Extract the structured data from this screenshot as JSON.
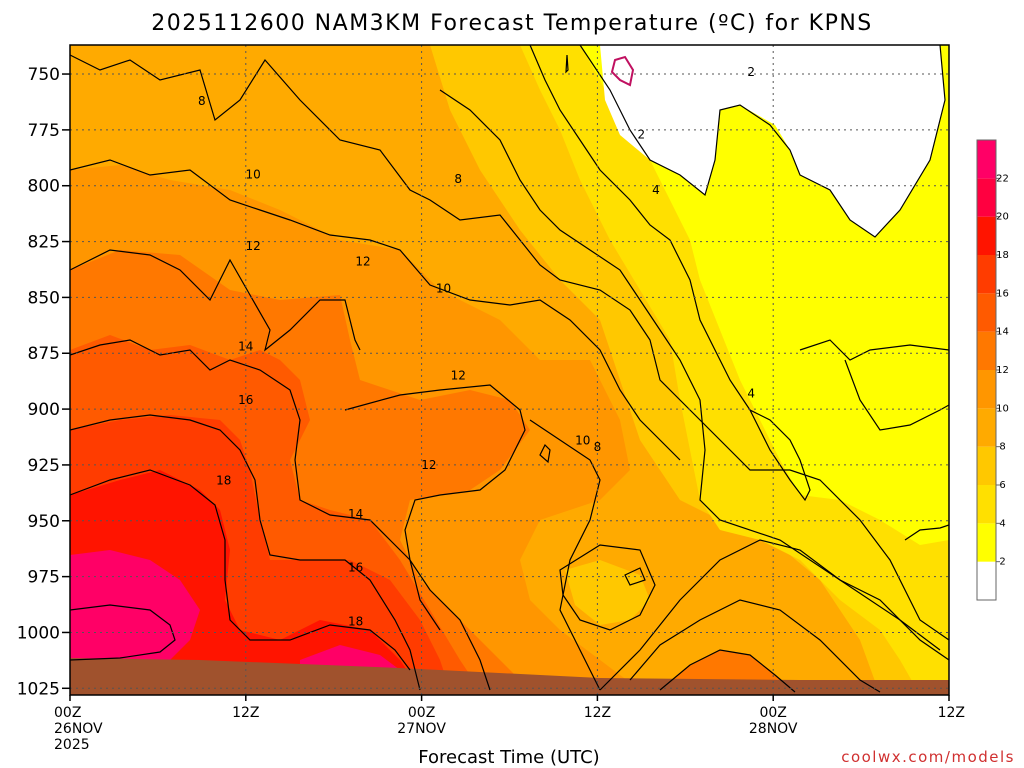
{
  "chart_data": {
    "type": "heatmap",
    "title": "2025112600 NAM3KM Forecast Temperature (ºC) for KPNS",
    "xlabel": "Forecast Time (UTC)",
    "ylabel": "",
    "credit": "coolwx.com/models",
    "x_ticks": [
      {
        "hour": 0,
        "lines": [
          "00Z",
          "26NOV",
          "2025"
        ]
      },
      {
        "hour": 12,
        "lines": [
          "12Z"
        ]
      },
      {
        "hour": 24,
        "lines": [
          "00Z",
          "27NOV"
        ]
      },
      {
        "hour": 36,
        "lines": [
          "12Z"
        ]
      },
      {
        "hour": 48,
        "lines": [
          "00Z",
          "28NOV"
        ]
      },
      {
        "hour": 60,
        "lines": [
          "12Z"
        ]
      }
    ],
    "x_range": [
      0,
      60
    ],
    "y_axis_label_levels": [
      750,
      775,
      800,
      825,
      850,
      875,
      900,
      925,
      950,
      975,
      1000,
      1025
    ],
    "y_range_hPa": [
      737,
      1028
    ],
    "grid": true,
    "colorbar": {
      "ticks": [
        2,
        4,
        6,
        8,
        10,
        12,
        14,
        16,
        18,
        20,
        22
      ],
      "bins": [
        {
          "min": -99,
          "max": 2,
          "color": "#ffffff"
        },
        {
          "min": 2,
          "max": 4,
          "color": "#ffff00"
        },
        {
          "min": 4,
          "max": 6,
          "color": "#ffe000"
        },
        {
          "min": 6,
          "max": 8,
          "color": "#ffc800"
        },
        {
          "min": 8,
          "max": 10,
          "color": "#ffaa00"
        },
        {
          "min": 10,
          "max": 12,
          "color": "#ff9600"
        },
        {
          "min": 12,
          "max": 14,
          "color": "#ff7800"
        },
        {
          "min": 14,
          "max": 16,
          "color": "#ff5a00"
        },
        {
          "min": 16,
          "max": 18,
          "color": "#ff3c00"
        },
        {
          "min": 18,
          "max": 20,
          "color": "#ff1400"
        },
        {
          "min": 20,
          "max": 22,
          "color": "#ff0040"
        },
        {
          "min": 22,
          "max": 99,
          "color": "#ff0066"
        }
      ]
    },
    "contour_labels": [
      {
        "hour": 9.0,
        "hPa": 762,
        "value": "8"
      },
      {
        "hour": 12.5,
        "hPa": 795,
        "value": "10"
      },
      {
        "hour": 12.5,
        "hPa": 827,
        "value": "12"
      },
      {
        "hour": 12.0,
        "hPa": 872,
        "value": "14"
      },
      {
        "hour": 12.0,
        "hPa": 896,
        "value": "16"
      },
      {
        "hour": 10.5,
        "hPa": 932,
        "value": "18"
      },
      {
        "hour": 26.5,
        "hPa": 797,
        "value": "8"
      },
      {
        "hour": 20.0,
        "hPa": 834,
        "value": "12"
      },
      {
        "hour": 25.5,
        "hPa": 846,
        "value": "10"
      },
      {
        "hour": 26.5,
        "hPa": 885,
        "value": "12"
      },
      {
        "hour": 24.5,
        "hPa": 925,
        "value": "12"
      },
      {
        "hour": 19.5,
        "hPa": 947,
        "value": "14"
      },
      {
        "hour": 19.5,
        "hPa": 971,
        "value": "16"
      },
      {
        "hour": 19.5,
        "hPa": 995,
        "value": "18"
      },
      {
        "hour": 35.0,
        "hPa": 914,
        "value": "10"
      },
      {
        "hour": 36.0,
        "hPa": 917,
        "value": "8"
      },
      {
        "hour": 39.0,
        "hPa": 777,
        "value": "2"
      },
      {
        "hour": 40.0,
        "hPa": 802,
        "value": "4"
      },
      {
        "hour": 46.5,
        "hPa": 749,
        "value": "2"
      },
      {
        "hour": 46.5,
        "hPa": 893,
        "value": "4"
      }
    ]
  }
}
